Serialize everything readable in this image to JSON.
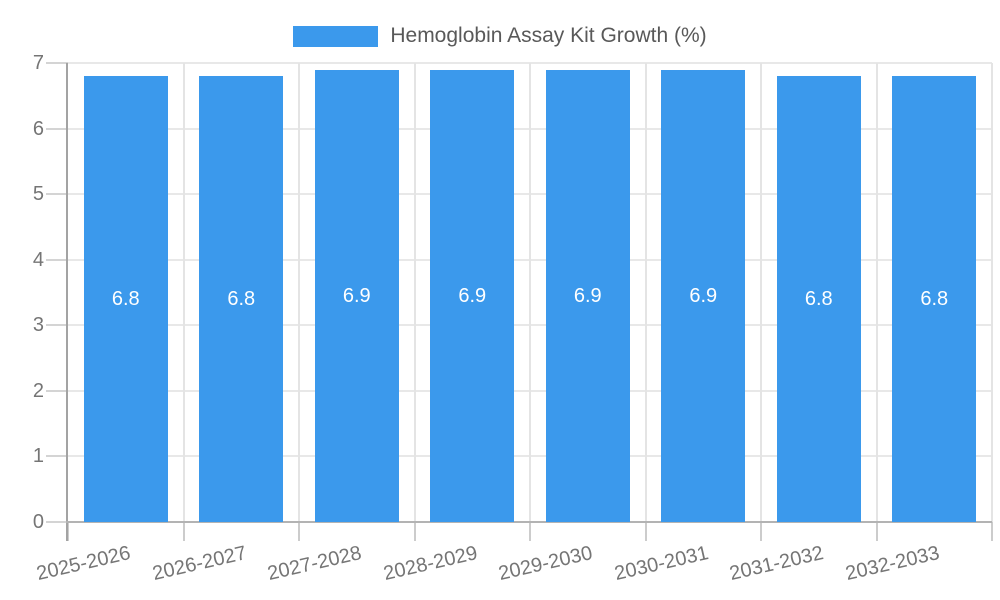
{
  "legend": {
    "label": "Hemoglobin Assay Kit Growth (%)"
  },
  "chart_data": {
    "type": "bar",
    "title": "Hemoglobin Assay Kit Growth (%)",
    "categories": [
      "2025-2026",
      "2026-2027",
      "2027-2028",
      "2028-2029",
      "2029-2030",
      "2030-2031",
      "2031-2032",
      "2032-2033"
    ],
    "values": [
      6.8,
      6.8,
      6.9,
      6.9,
      6.9,
      6.9,
      6.8,
      6.8
    ],
    "data_labels": [
      "6.8",
      "6.8",
      "6.9",
      "6.9",
      "6.9",
      "6.9",
      "6.8",
      "6.8"
    ],
    "xlabel": "",
    "ylabel": "",
    "ylim": [
      0,
      7
    ],
    "yticks": [
      0,
      1,
      2,
      3,
      4,
      5,
      6,
      7
    ],
    "grid": true,
    "legend_position": "top-center",
    "bar_color": "#3B99EC",
    "data_label_color": "#ffffff",
    "axis_text_color": "#757575"
  }
}
